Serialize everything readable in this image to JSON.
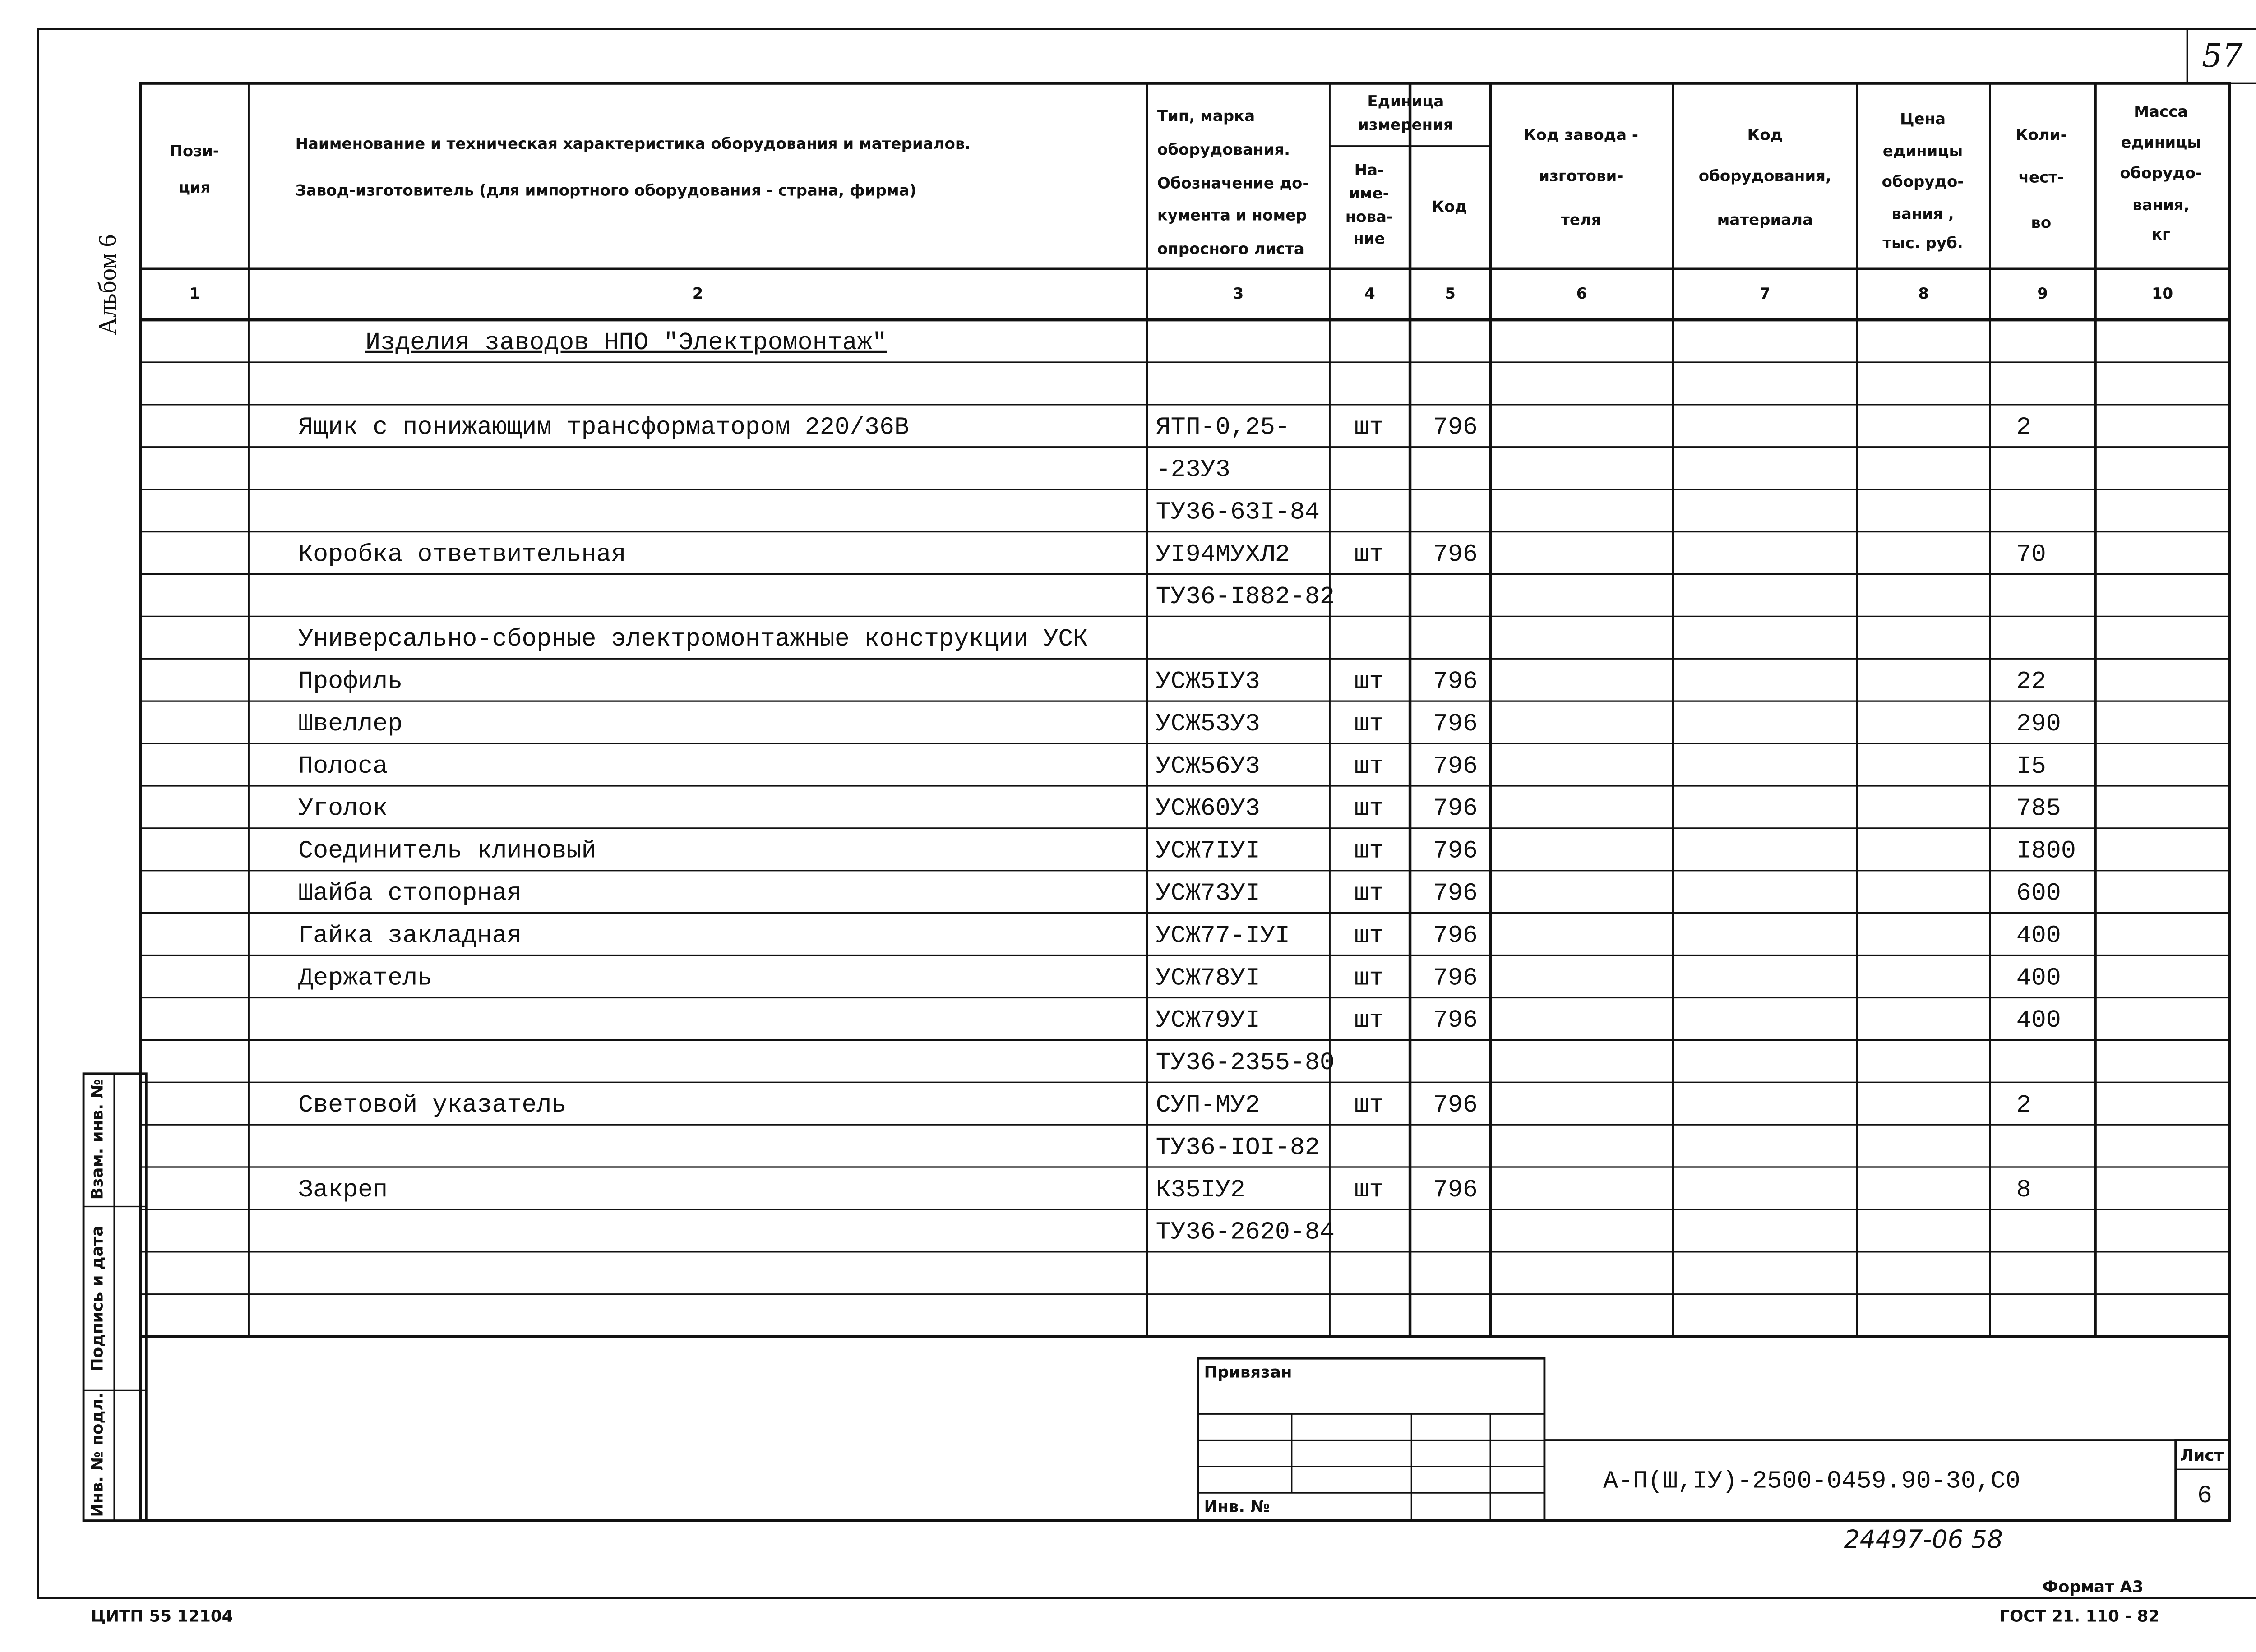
{
  "sheet_number": "57",
  "side": {
    "album": "Альбом 6",
    "replaced": "Взам. инв. №",
    "signature": "Подпись и дата",
    "inventory": "Инв. № подл."
  },
  "header_columns": [
    [
      "Пози-",
      "ция"
    ],
    [
      "Наименование и техническая характеристика  оборудования и материалов.",
      "Завод-изготовитель  (для импортного оборудования -  страна, фирма)"
    ],
    [
      "Тип,      марка",
      "оборудования.",
      "Обозначение  до-",
      "кумента  и  номер",
      "опросного  листа"
    ],
    [
      "Единица",
      "измерения"
    ],
    [
      "На-",
      "име-",
      "нова-",
      "ние"
    ],
    [
      "Код"
    ],
    [
      "Код  завода -",
      "изготови-",
      "теля"
    ],
    [
      "Код",
      "оборудования,",
      "материала"
    ],
    [
      "Цена",
      "единицы",
      "оборудо-",
      "вания ,",
      "тыс. руб."
    ],
    [
      "Коли-",
      "чест-",
      "во"
    ],
    [
      "Масса",
      "единицы",
      "оборудо-",
      "вания,",
      "кг"
    ]
  ],
  "column_numbers": [
    "1",
    "2",
    "3",
    "4",
    "5",
    "6",
    "7",
    "8",
    "9",
    "10"
  ],
  "rows": [
    {
      "name": "Изделия заводов НПО \"Электромонтаж\""
    },
    {},
    {
      "name": "Ящик с понижающим трансформатором 220/36В",
      "type": "ЯТП-0,25-",
      "unit": "шт",
      "code": "796",
      "qty": "2"
    },
    {
      "type": "-23У3"
    },
    {
      "type": "ТУ36-63I-84"
    },
    {
      "name": "Коробка ответвительная",
      "type": "УI94МУХЛ2",
      "unit": "шт",
      "code": "796",
      "qty": "70"
    },
    {
      "type": "ТУ36-I882-82"
    },
    {
      "name": "Универсально-сборные электромонтажные конструкции УСК"
    },
    {
      "name": "Профиль",
      "type": "УСЖ5IУ3",
      "unit": "шт",
      "code": "796",
      "qty": "22"
    },
    {
      "name": "Швеллер",
      "type": "УСЖ53У3",
      "unit": "шт",
      "code": "796",
      "qty": "290"
    },
    {
      "name": "Полоса",
      "type": "УСЖ56У3",
      "unit": "шт",
      "code": "796",
      "qty": "I5"
    },
    {
      "name": "Уголок",
      "type": "УСЖ60У3",
      "unit": "шт",
      "code": "796",
      "qty": "785"
    },
    {
      "name": "Соединитель клиновый",
      "type": "УСЖ7IУI",
      "unit": "шт",
      "code": "796",
      "qty": "I800"
    },
    {
      "name": "Шайба стопорная",
      "type": "УСЖ73УI",
      "unit": "шт",
      "code": "796",
      "qty": "600"
    },
    {
      "name": "Гайка закладная",
      "type": "УСЖ77-IУI",
      "unit": "шт",
      "code": "796",
      "qty": "400"
    },
    {
      "name": "Держатель",
      "type": "УСЖ78УI",
      "unit": "шт",
      "code": "796",
      "qty": "400"
    },
    {
      "type": "УСЖ79УI",
      "unit": "шт",
      "code": "796",
      "qty": "400"
    },
    {
      "type": "ТУ36-2355-80"
    },
    {
      "name": "Световой указатель",
      "type": "СУП-МУ2",
      "unit": "шт",
      "code": "796",
      "qty": "2"
    },
    {
      "type": "ТУ36-IOI-82"
    },
    {
      "name": "Закреп",
      "type": "К35IУ2",
      "unit": "шт",
      "code": "796",
      "qty": "8"
    },
    {
      "type": "ТУ36-2620-84"
    },
    {},
    {}
  ],
  "stamp": {
    "linked": "Привязан",
    "inv": "Инв. №",
    "document_code": "А-П(Ш,IУ)-2500-0459.90-30,С0",
    "sheet_label": "Лист",
    "sheet": "6"
  },
  "handwritten": "24497-06  58",
  "format": "Формат А3",
  "publisher": "ЦИТП  55  12104",
  "standard": "ГОСТ  21. 110 - 82"
}
